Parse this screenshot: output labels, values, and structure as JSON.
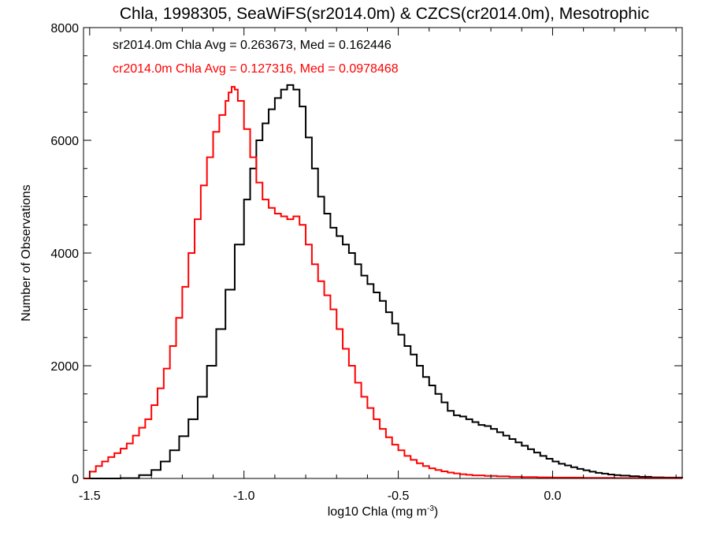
{
  "chart_data": {
    "type": "line",
    "step": true,
    "title": "Chla, 1998305, SeaWiFS(sr2014.0m) & CZCS(cr2014.0m), Mesotrophic",
    "xlabel": "log10 Chla (mg m",
    "xlabel_exponent": "-3",
    "xlabel_close": ")",
    "ylabel": "Number of Observations",
    "xlim": [
      -1.52,
      0.42
    ],
    "ylim": [
      0,
      8000
    ],
    "x_ticks": [
      {
        "value": -1.5,
        "label": "-1.5"
      },
      {
        "value": -1.0,
        "label": "-1.0"
      },
      {
        "value": -0.5,
        "label": "-0.5"
      },
      {
        "value": 0.0,
        "label": "0.0"
      }
    ],
    "y_ticks": [
      {
        "value": 0,
        "label": "0"
      },
      {
        "value": 2000,
        "label": "2000"
      },
      {
        "value": 4000,
        "label": "4000"
      },
      {
        "value": 6000,
        "label": "6000"
      },
      {
        "value": 8000,
        "label": "8000"
      }
    ],
    "grid": false,
    "legend": [
      {
        "text": "sr2014.0m Chla Avg = 0.263673, Med = 0.162446",
        "color": "#000000"
      },
      {
        "text": "cr2014.0m Chla Avg = 0.127316, Med = 0.0978468",
        "color": "#ff0000"
      }
    ],
    "series": [
      {
        "name": "sr2014.0m",
        "color": "#000000",
        "points": [
          [
            -1.52,
            0
          ],
          [
            -1.4,
            5
          ],
          [
            -1.34,
            60
          ],
          [
            -1.3,
            150
          ],
          [
            -1.27,
            300
          ],
          [
            -1.24,
            500
          ],
          [
            -1.21,
            750
          ],
          [
            -1.18,
            1050
          ],
          [
            -1.15,
            1450
          ],
          [
            -1.12,
            2000
          ],
          [
            -1.09,
            2650
          ],
          [
            -1.06,
            3350
          ],
          [
            -1.03,
            4150
          ],
          [
            -1.0,
            4950
          ],
          [
            -0.98,
            5500
          ],
          [
            -0.96,
            6000
          ],
          [
            -0.94,
            6300
          ],
          [
            -0.92,
            6550
          ],
          [
            -0.9,
            6750
          ],
          [
            -0.88,
            6900
          ],
          [
            -0.86,
            6980
          ],
          [
            -0.84,
            6900
          ],
          [
            -0.82,
            6600
          ],
          [
            -0.8,
            6050
          ],
          [
            -0.78,
            5500
          ],
          [
            -0.76,
            5000
          ],
          [
            -0.74,
            4700
          ],
          [
            -0.72,
            4450
          ],
          [
            -0.7,
            4300
          ],
          [
            -0.68,
            4150
          ],
          [
            -0.66,
            4000
          ],
          [
            -0.64,
            3800
          ],
          [
            -0.62,
            3600
          ],
          [
            -0.6,
            3450
          ],
          [
            -0.58,
            3300
          ],
          [
            -0.56,
            3150
          ],
          [
            -0.54,
            2950
          ],
          [
            -0.52,
            2750
          ],
          [
            -0.5,
            2550
          ],
          [
            -0.48,
            2350
          ],
          [
            -0.46,
            2200
          ],
          [
            -0.44,
            2000
          ],
          [
            -0.42,
            1800
          ],
          [
            -0.4,
            1650
          ],
          [
            -0.38,
            1500
          ],
          [
            -0.36,
            1350
          ],
          [
            -0.34,
            1200
          ],
          [
            -0.32,
            1120
          ],
          [
            -0.3,
            1100
          ],
          [
            -0.28,
            1050
          ],
          [
            -0.26,
            1000
          ],
          [
            -0.24,
            950
          ],
          [
            -0.22,
            930
          ],
          [
            -0.2,
            880
          ],
          [
            -0.18,
            820
          ],
          [
            -0.16,
            760
          ],
          [
            -0.14,
            700
          ],
          [
            -0.12,
            640
          ],
          [
            -0.1,
            580
          ],
          [
            -0.08,
            520
          ],
          [
            -0.06,
            460
          ],
          [
            -0.04,
            400
          ],
          [
            -0.02,
            350
          ],
          [
            0.0,
            300
          ],
          [
            0.02,
            260
          ],
          [
            0.04,
            230
          ],
          [
            0.06,
            200
          ],
          [
            0.08,
            170
          ],
          [
            0.1,
            145
          ],
          [
            0.12,
            120
          ],
          [
            0.14,
            100
          ],
          [
            0.16,
            85
          ],
          [
            0.18,
            70
          ],
          [
            0.2,
            60
          ],
          [
            0.22,
            50
          ],
          [
            0.25,
            40
          ],
          [
            0.28,
            30
          ],
          [
            0.32,
            20
          ],
          [
            0.36,
            15
          ],
          [
            0.42,
            10
          ]
        ]
      },
      {
        "name": "cr2014.0m",
        "color": "#ff0000",
        "points": [
          [
            -1.52,
            0
          ],
          [
            -1.5,
            120
          ],
          [
            -1.48,
            220
          ],
          [
            -1.46,
            300
          ],
          [
            -1.44,
            380
          ],
          [
            -1.42,
            450
          ],
          [
            -1.4,
            530
          ],
          [
            -1.38,
            620
          ],
          [
            -1.36,
            760
          ],
          [
            -1.34,
            900
          ],
          [
            -1.32,
            1050
          ],
          [
            -1.3,
            1300
          ],
          [
            -1.28,
            1600
          ],
          [
            -1.26,
            1950
          ],
          [
            -1.24,
            2350
          ],
          [
            -1.22,
            2850
          ],
          [
            -1.2,
            3400
          ],
          [
            -1.18,
            4000
          ],
          [
            -1.16,
            4600
          ],
          [
            -1.14,
            5200
          ],
          [
            -1.12,
            5700
          ],
          [
            -1.1,
            6150
          ],
          [
            -1.08,
            6450
          ],
          [
            -1.06,
            6700
          ],
          [
            -1.05,
            6850
          ],
          [
            -1.04,
            6950
          ],
          [
            -1.03,
            6900
          ],
          [
            -1.02,
            6700
          ],
          [
            -1.0,
            6200
          ],
          [
            -0.98,
            5700
          ],
          [
            -0.96,
            5250
          ],
          [
            -0.94,
            4950
          ],
          [
            -0.92,
            4800
          ],
          [
            -0.9,
            4700
          ],
          [
            -0.88,
            4650
          ],
          [
            -0.86,
            4600
          ],
          [
            -0.84,
            4650
          ],
          [
            -0.82,
            4500
          ],
          [
            -0.8,
            4150
          ],
          [
            -0.78,
            3800
          ],
          [
            -0.76,
            3500
          ],
          [
            -0.74,
            3250
          ],
          [
            -0.72,
            3000
          ],
          [
            -0.7,
            2650
          ],
          [
            -0.68,
            2300
          ],
          [
            -0.66,
            2000
          ],
          [
            -0.64,
            1700
          ],
          [
            -0.62,
            1450
          ],
          [
            -0.6,
            1250
          ],
          [
            -0.58,
            1050
          ],
          [
            -0.56,
            880
          ],
          [
            -0.54,
            730
          ],
          [
            -0.52,
            600
          ],
          [
            -0.5,
            500
          ],
          [
            -0.48,
            400
          ],
          [
            -0.46,
            330
          ],
          [
            -0.44,
            270
          ],
          [
            -0.42,
            220
          ],
          [
            -0.4,
            180
          ],
          [
            -0.38,
            150
          ],
          [
            -0.36,
            125
          ],
          [
            -0.34,
            105
          ],
          [
            -0.32,
            90
          ],
          [
            -0.3,
            75
          ],
          [
            -0.28,
            65
          ],
          [
            -0.26,
            55
          ],
          [
            -0.22,
            45
          ],
          [
            -0.18,
            38
          ],
          [
            -0.14,
            30
          ],
          [
            -0.1,
            25
          ],
          [
            -0.05,
            20
          ],
          [
            0.0,
            15
          ],
          [
            0.1,
            10
          ],
          [
            0.2,
            7
          ],
          [
            0.3,
            5
          ],
          [
            0.42,
            3
          ]
        ]
      }
    ]
  }
}
